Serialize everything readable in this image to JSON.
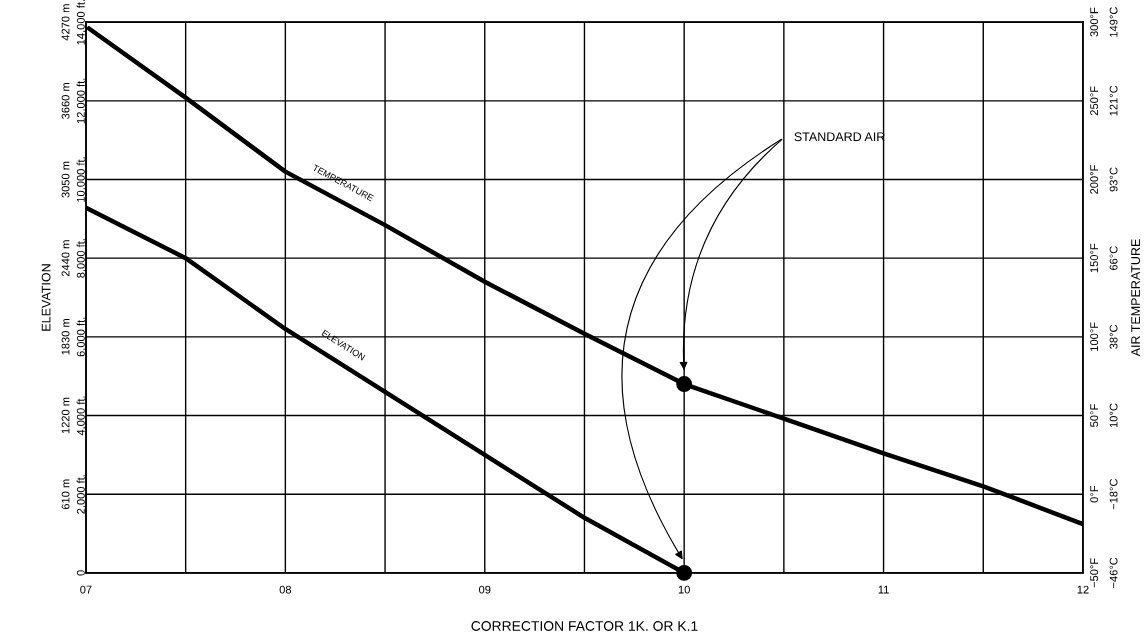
{
  "chart_data": {
    "type": "line",
    "xlabel": "CORRECTION FACTOR 1K. OR K.1",
    "ylabel": "ELEVATION",
    "y2label": "AIR TEMPERATURE",
    "xlim": [
      7,
      12
    ],
    "xticks": [
      {
        "value": 7,
        "label": "07"
      },
      {
        "value": 7.5,
        "label": null
      },
      {
        "value": 8,
        "label": "08"
      },
      {
        "value": 8.5,
        "label": null
      },
      {
        "value": 9,
        "label": "09"
      },
      {
        "value": 9.5,
        "label": null
      },
      {
        "value": 10,
        "label": "10"
      },
      {
        "value": 10.5,
        "label": null
      },
      {
        "value": 11,
        "label": "11"
      },
      {
        "value": 11.5,
        "label": null
      },
      {
        "value": 12,
        "label": "12"
      }
    ],
    "ylim": [
      0,
      14000
    ],
    "yticks": [
      0,
      {
        "value": 2000,
        "label": "2,000 ft."
      },
      {
        "value": 4000,
        "label": "4,000 ft."
      },
      {
        "value": 6000,
        "label": "6,000 ft."
      },
      {
        "value": 8000,
        "label": "8,000 ft."
      },
      {
        "value": 10000,
        "label": "10,000 ft."
      },
      {
        "value": 12000,
        "label": "12,000 ft."
      },
      {
        "value": 14000,
        "label": "14,000 ft."
      }
    ],
    "y3lim": [
      0,
      4270
    ],
    "y3ticks": [
      {
        "value": 0,
        "label": null
      },
      {
        "value": 610,
        "label": "610 m"
      },
      {
        "value": 1220,
        "label": "1220 m"
      },
      {
        "value": 1830,
        "label": "1830 m"
      },
      {
        "value": 2440,
        "label": "2440 m"
      },
      {
        "value": 3050,
        "label": "3050 m"
      },
      {
        "value": 3660,
        "label": "3660 m"
      },
      {
        "value": 4270,
        "label": "4270 m"
      }
    ],
    "y2lim": [
      -50,
      300
    ],
    "y2ticks": [
      {
        "value": -50,
        "label": "−50°F"
      },
      {
        "value": 0,
        "label": "0°F"
      },
      {
        "value": 50,
        "label": "50°F"
      },
      {
        "value": 100,
        "label": "100°F"
      },
      {
        "value": 150,
        "label": "150°F"
      },
      {
        "value": 200,
        "label": "200°F"
      },
      {
        "value": 250,
        "label": "250°F"
      },
      {
        "value": 300,
        "label": "300°F"
      }
    ],
    "grid": true,
    "marker": "none",
    "series": [
      {
        "axis": "y2",
        "color": "#000000",
        "x": [
          7.015,
          7.5,
          8,
          8.5,
          9,
          9.5,
          10,
          10.5,
          11,
          11.5,
          12
        ],
        "values": [
          296,
          252,
          205,
          171,
          135,
          102,
          70,
          48,
          26,
          5,
          -19
        ]
      },
      {
        "axis": "y",
        "color": "#000000",
        "x": [
          7,
          7.5,
          8,
          8.5,
          9,
          9.5,
          10
        ],
        "values": [
          9280,
          8000,
          6200,
          4600,
          3000,
          1400,
          0
        ]
      },
      {
        "type": "scatter",
        "axis": "y2",
        "color": "#000000",
        "marker": "circle",
        "x": [
          10
        ],
        "values": [
          70
        ]
      },
      {
        "type": "scatter",
        "axis": "y",
        "color": "#000000",
        "marker": "circle",
        "x": [
          10
        ],
        "values": [
          0
        ]
      }
    ],
    "annotations": [
      "TEMPERATURE",
      "ELEVATION",
      "STANDARD AIR",
      "−46°C",
      "−18°C",
      "10°C",
      "38°C",
      "66°C",
      "93°C",
      "121°C",
      "149°C"
    ]
  }
}
